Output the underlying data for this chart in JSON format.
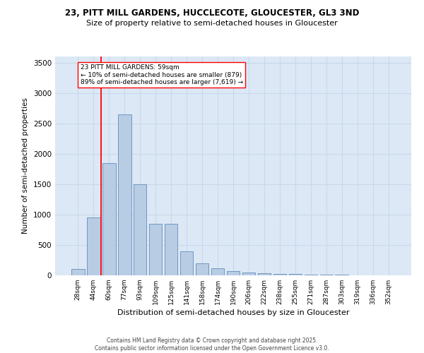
{
  "title_line1": "23, PITT MILL GARDENS, HUCCLECOTE, GLOUCESTER, GL3 3ND",
  "title_line2": "Size of property relative to semi-detached houses in Gloucester",
  "xlabel": "Distribution of semi-detached houses by size in Gloucester",
  "ylabel": "Number of semi-detached properties",
  "categories": [
    "28sqm",
    "44sqm",
    "60sqm",
    "77sqm",
    "93sqm",
    "109sqm",
    "125sqm",
    "141sqm",
    "158sqm",
    "174sqm",
    "190sqm",
    "206sqm",
    "222sqm",
    "238sqm",
    "255sqm",
    "271sqm",
    "287sqm",
    "303sqm",
    "319sqm",
    "336sqm",
    "352sqm"
  ],
  "values": [
    100,
    950,
    1850,
    2650,
    1500,
    850,
    850,
    400,
    200,
    120,
    75,
    50,
    35,
    22,
    18,
    15,
    12,
    8,
    5,
    4,
    3
  ],
  "bar_color": "#b8cce4",
  "bar_edge_color": "#7098c0",
  "grid_color": "#c8d8ec",
  "background_color": "#dce8f5",
  "annotation_text": "23 PITT MILL GARDENS: 59sqm\n← 10% of semi-detached houses are smaller (879)\n89% of semi-detached houses are larger (7,619) →",
  "red_line_x": 1.5,
  "ylim": [
    0,
    3600
  ],
  "yticks": [
    0,
    500,
    1000,
    1500,
    2000,
    2500,
    3000,
    3500
  ],
  "footer_line1": "Contains HM Land Registry data © Crown copyright and database right 2025.",
  "footer_line2": "Contains public sector information licensed under the Open Government Licence v3.0."
}
